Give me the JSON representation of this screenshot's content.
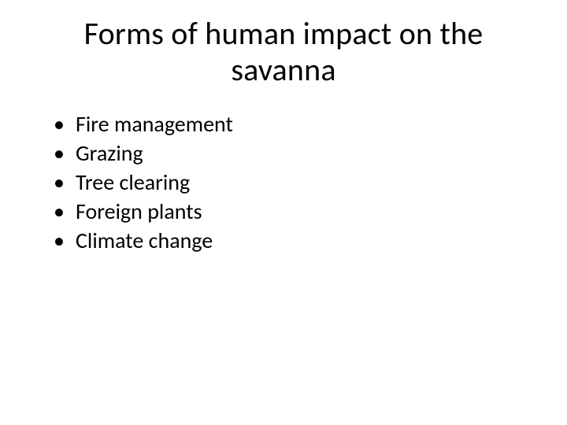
{
  "slide": {
    "title": "Forms of human impact on the savanna",
    "bullets": [
      "Fire management",
      "Grazing",
      "Tree clearing",
      "Foreign plants",
      "Climate change"
    ],
    "background_color": "#ffffff",
    "text_color": "#000000",
    "title_fontsize": 40,
    "bullet_fontsize": 28,
    "font_family": "Calibri"
  }
}
